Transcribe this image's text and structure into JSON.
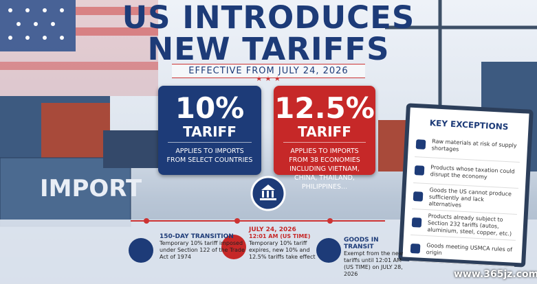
{
  "header": {
    "title_lines": [
      "US INTRODUCES",
      "NEW TARIFFS"
    ],
    "subtitle": "EFFECTIVE FROM JULY 24, 2026"
  },
  "cards": [
    {
      "rate": "10%",
      "label": "TARIFF",
      "description": "APPLIES TO IMPORTS FROM SELECT COUNTRIES"
    },
    {
      "rate": "12.5%",
      "label": "TARIFF",
      "description": "APPLIES TO IMPORTS FROM 38 ECONOMIES INCLUDING VIETNAM, CHINA, THAILAND, PHILIPPINES..."
    }
  ],
  "container_label": "IMPORT",
  "exceptions": {
    "title": "KEY EXCEPTIONS",
    "items": [
      "Raw materials at risk of supply shortages",
      "Products whose taxation could disrupt the economy",
      "Goods the US cannot produce sufficiently and lack alternatives",
      "Products already subject to Section 232 tariffs (autos, aluminium, steel, copper, etc.)",
      "Goods meeting USMCA rules of origin"
    ]
  },
  "timeline": [
    {
      "title": "150-DAY TRANSITION",
      "subtitle": null,
      "text": "Temporary 10% tariff imposed under Section 122 of the Trade Act of 1974"
    },
    {
      "title": "JULY 24, 2026",
      "subtitle": "12:01 AM (US TIME)",
      "text": "Temporary 10% tariff expires, new 10% and 12.5% tariffs take effect"
    },
    {
      "title": "GOODS IN TRANSIT",
      "subtitle": null,
      "text": "Exempt from the new tariffs until 12:01 AM (US TIME) on JULY 28, 2026"
    }
  ],
  "watermark": "www.365jz.com"
}
